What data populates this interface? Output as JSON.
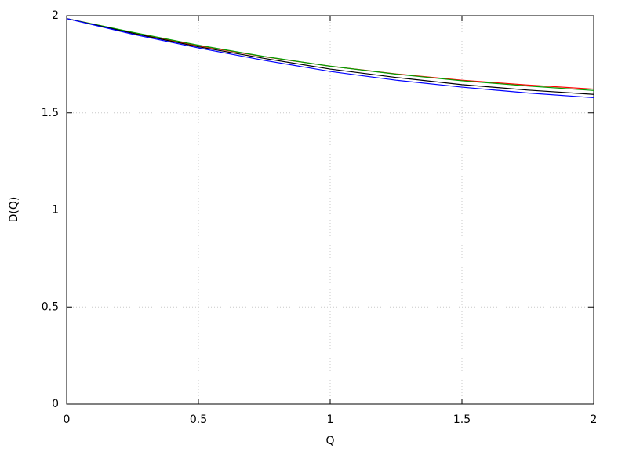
{
  "chart_data": {
    "type": "line",
    "x_label": "Q",
    "y_label": "D(Q)",
    "x": [
      0,
      0.25,
      0.5,
      0.75,
      1,
      1.25,
      1.5,
      1.75,
      2
    ],
    "series": [
      {
        "color": "#ff0000",
        "values": [
          1.985,
          1.913,
          1.845,
          1.789,
          1.74,
          1.7,
          1.668,
          1.643,
          1.622
        ]
      },
      {
        "color": "#00a000",
        "values": [
          1.985,
          1.915,
          1.848,
          1.79,
          1.74,
          1.699,
          1.665,
          1.638,
          1.615
        ]
      },
      {
        "color": "#000000",
        "values": [
          1.985,
          1.91,
          1.84,
          1.78,
          1.725,
          1.682,
          1.645,
          1.617,
          1.595
        ]
      },
      {
        "color": "#0000ff",
        "values": [
          1.985,
          1.905,
          1.834,
          1.77,
          1.713,
          1.668,
          1.632,
          1.602,
          1.578
        ]
      }
    ],
    "xlim": [
      0,
      2
    ],
    "ylim": [
      0,
      2
    ],
    "xticks": [
      0,
      0.5,
      1,
      1.5,
      2
    ],
    "yticks": [
      0,
      0.5,
      1,
      1.5,
      2
    ],
    "grid": true
  }
}
